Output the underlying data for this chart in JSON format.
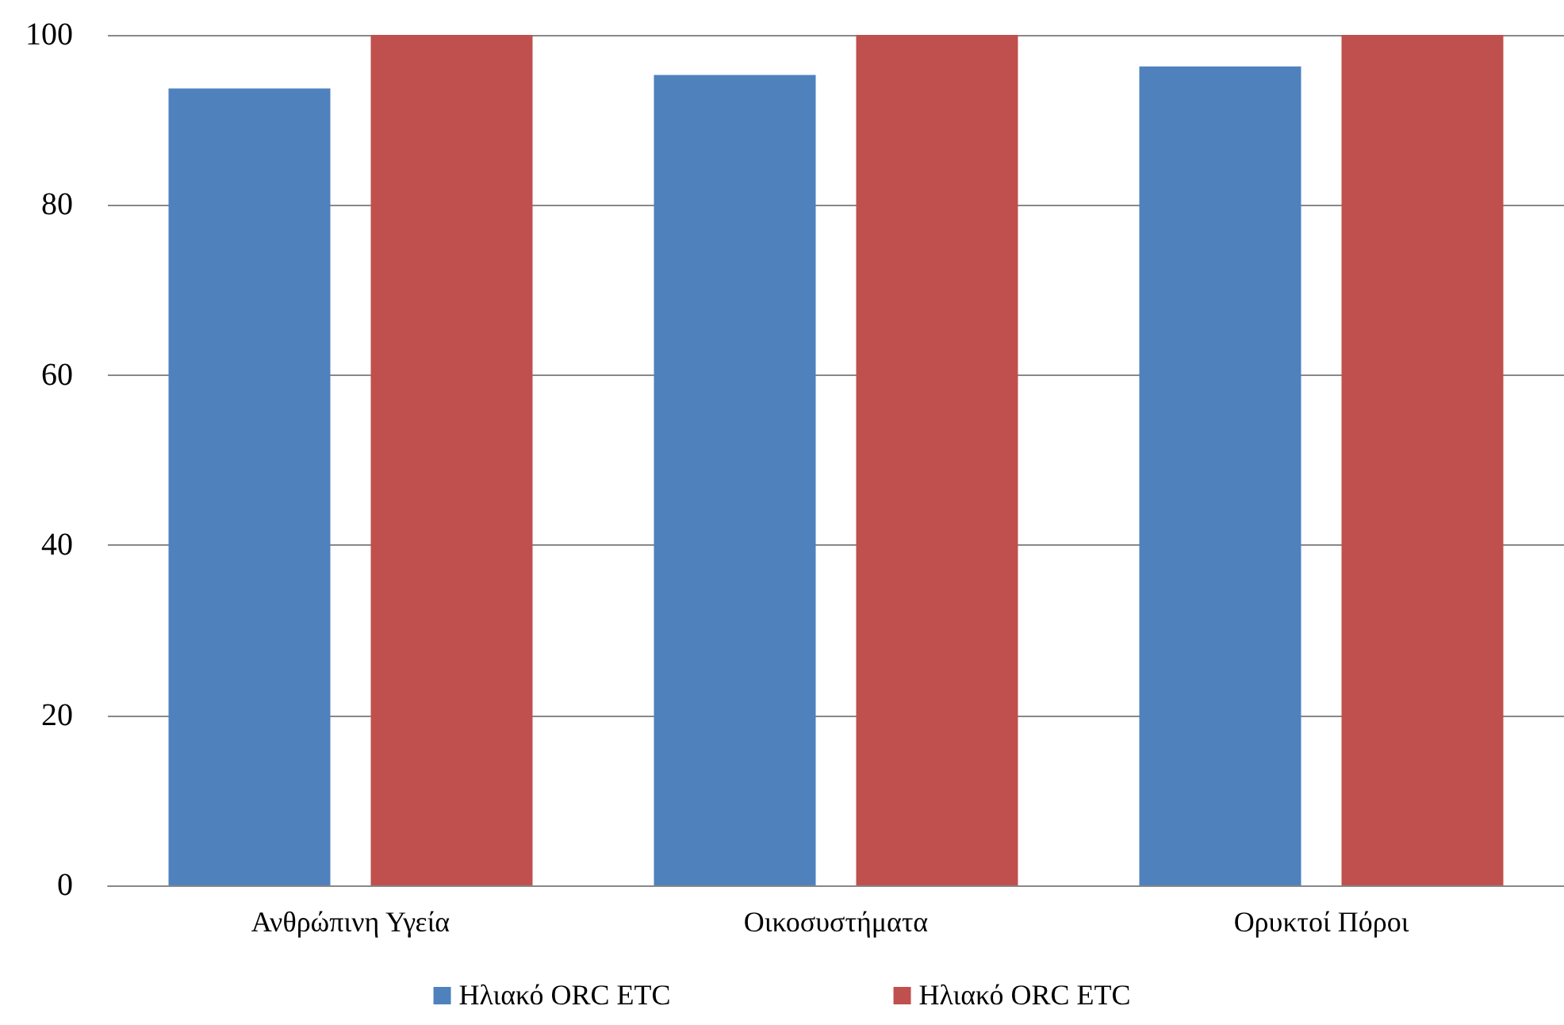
{
  "chart_data": {
    "type": "bar",
    "categories": [
      "Ανθρώπινη Υγεία",
      "Οικοσυστήματα",
      "Ορυκτοί Πόροι"
    ],
    "series": [
      {
        "name": "Ηλιακό ORC ETC",
        "color": "#4f81bd",
        "values": [
          93.7,
          95.3,
          96.3
        ]
      },
      {
        "name": "Ηλιακό ORC ETC",
        "color": "#c0504d",
        "values": [
          100,
          100,
          100
        ]
      }
    ],
    "ylim": [
      0,
      100
    ],
    "yticks": [
      0,
      20,
      40,
      60,
      80,
      100
    ],
    "grid": "y",
    "legend": "bottom"
  }
}
